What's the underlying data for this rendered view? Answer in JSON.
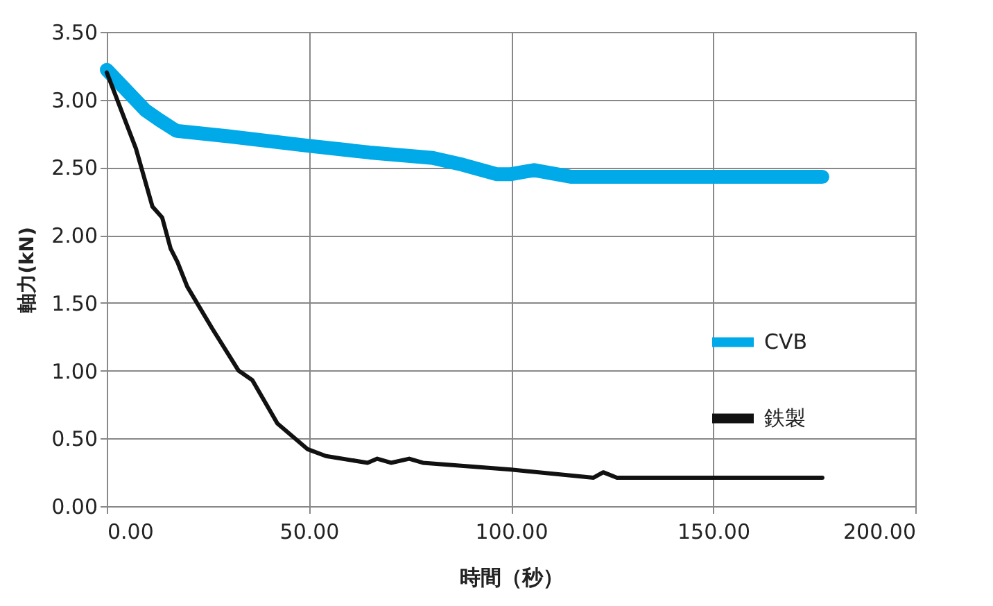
{
  "chart_data": {
    "type": "line",
    "xlabel": "時間（秒）",
    "ylabel": "軸力(kN)",
    "xlim": [
      0,
      200
    ],
    "ylim": [
      0,
      3.5
    ],
    "xticks": [
      {
        "value": 0,
        "label": "0.00"
      },
      {
        "value": 50,
        "label": "50.00"
      },
      {
        "value": 100,
        "label": "100.00"
      },
      {
        "value": 150,
        "label": "150.00"
      },
      {
        "value": 200,
        "label": "200.00"
      }
    ],
    "yticks": [
      {
        "value": 0,
        "label": "0.00"
      },
      {
        "value": 0.5,
        "label": "0.50"
      },
      {
        "value": 1,
        "label": "1.00"
      },
      {
        "value": 1.5,
        "label": "1.50"
      },
      {
        "value": 2,
        "label": "2.00"
      },
      {
        "value": 2.5,
        "label": "2.50"
      },
      {
        "value": 3,
        "label": "3.00"
      },
      {
        "value": 3.5,
        "label": "3.50"
      }
    ],
    "grid": true,
    "legend": "right",
    "marker": "none",
    "line_style": "solid",
    "series": [
      {
        "name": "CVB",
        "color": "#00a9e8",
        "x": [
          0,
          4.5,
          9.6,
          13,
          17.2,
          30,
          49.7,
          65,
          80.6,
          88,
          96.4,
          100,
          105.7,
          115,
          140,
          177
        ],
        "values": [
          3.22,
          3.08,
          2.92,
          2.85,
          2.77,
          2.73,
          2.66,
          2.61,
          2.57,
          2.52,
          2.45,
          2.45,
          2.48,
          2.43,
          2.43,
          2.43
        ]
      },
      {
        "name": "鉄製",
        "color": "#111111",
        "x": [
          0,
          7.2,
          11.3,
          13.7,
          15.8,
          17.5,
          19.9,
          26.1,
          32.6,
          36,
          42.2,
          49.7,
          54.2,
          64.5,
          66.9,
          70.3,
          74.8,
          78.2,
          100,
          120.4,
          122.8,
          126.2,
          177
        ],
        "values": [
          3.2,
          2.64,
          2.21,
          2.13,
          1.9,
          1.8,
          1.62,
          1.31,
          1.0,
          0.93,
          0.61,
          0.42,
          0.37,
          0.32,
          0.35,
          0.32,
          0.35,
          0.32,
          0.27,
          0.21,
          0.25,
          0.21,
          0.21
        ]
      }
    ]
  }
}
